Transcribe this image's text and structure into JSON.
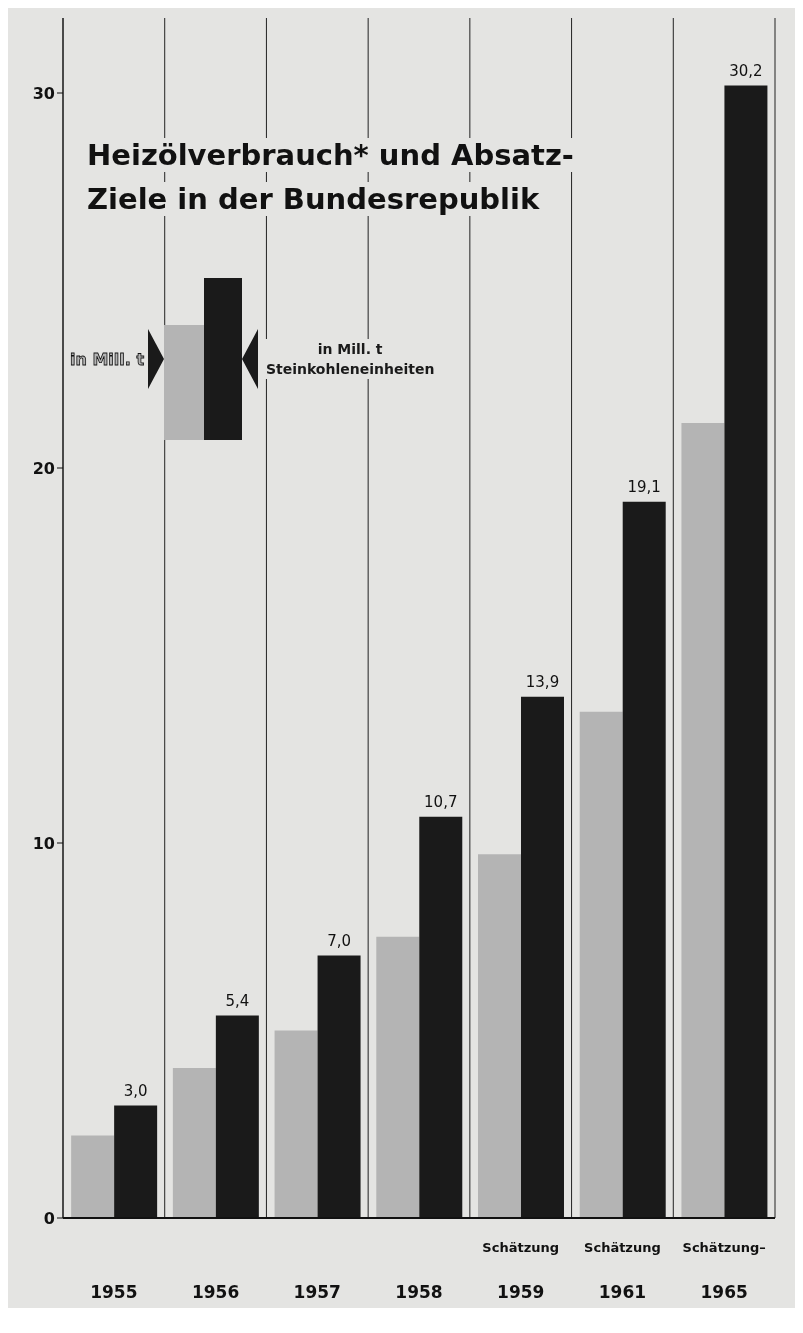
{
  "chart_data": {
    "type": "bar",
    "title": "Heizölverbrauch* und Absatz-Ziele in der Bundesrepublik",
    "categories": [
      "1955",
      "1956",
      "1957",
      "1958",
      "1959",
      "1961",
      "1965"
    ],
    "series": [
      {
        "name": "in Mill. t",
        "color": "#b4b4b4",
        "values": [
          2.2,
          4.0,
          5.0,
          7.5,
          9.7,
          13.5,
          21.2
        ]
      },
      {
        "name": "in Mill. t Steinkohleneinheiten",
        "color": "#1a1a1a",
        "values": [
          3.0,
          5.4,
          7.0,
          10.7,
          13.9,
          19.1,
          30.2
        ],
        "value_labels": [
          "3,0",
          "5,4",
          "7,0",
          "10,7",
          "13,9",
          "19,1",
          "30,2"
        ]
      }
    ],
    "ylim": [
      0,
      32
    ],
    "yticks": [
      0,
      10,
      20,
      30
    ],
    "grid": true,
    "legend": "top left",
    "annotations": [
      "Schätzung",
      "Schätzung",
      "Schätzung–"
    ]
  }
}
